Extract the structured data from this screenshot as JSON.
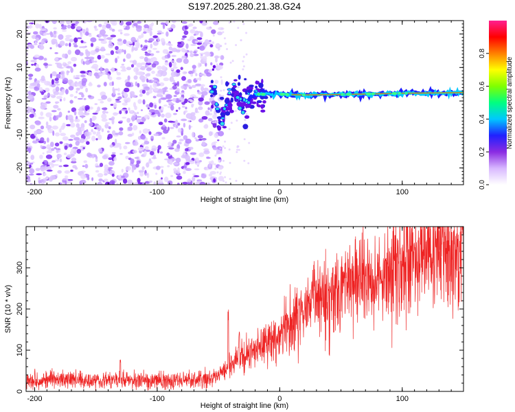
{
  "title": "S197.2025.280.21.38.G24",
  "chart_data": [
    {
      "type": "heatmap",
      "title": "S197.2025.280.21.38.G24",
      "xlabel": "Height of straight line (km)",
      "ylabel": "Frequency (Hz)",
      "xlim": [
        -207,
        150
      ],
      "ylim": [
        -25,
        24
      ],
      "xticks": [
        -200,
        -100,
        0,
        100
      ],
      "xtick_labels": [
        "-200",
        "-100",
        "0",
        "100"
      ],
      "yticks": [
        -20,
        -10,
        0,
        10,
        20
      ],
      "ytick_labels": [
        "-20",
        "-10",
        "0",
        "10",
        "20"
      ],
      "noise_region_x": [
        -207,
        -55
      ],
      "signal_track": [
        {
          "x": -55,
          "y": 8.5
        },
        {
          "x": -50,
          "y": -6
        },
        {
          "x": -45,
          "y": -3
        },
        {
          "x": -42,
          "y": 1
        },
        {
          "x": -38,
          "y": 3
        },
        {
          "x": -30,
          "y": -1
        },
        {
          "x": -20,
          "y": 2
        },
        {
          "x": 0,
          "y": 2
        },
        {
          "x": 20,
          "y": 1.8
        },
        {
          "x": 60,
          "y": 2
        },
        {
          "x": 100,
          "y": 2.3
        },
        {
          "x": 150,
          "y": 2.5
        }
      ],
      "colorbar": {
        "label": "Normalized spectral amplitude",
        "range": [
          0.0,
          1.0
        ],
        "ticks": [
          0.0,
          0.2,
          0.4,
          0.6,
          0.8
        ],
        "tick_labels": [
          "0.0",
          "0.2",
          "0.4",
          "0.6",
          "0.8"
        ],
        "colors": [
          "#ffffff",
          "#d8b8ff",
          "#8a2be2",
          "#2020ff",
          "#00c8ff",
          "#00ff80",
          "#80ff00",
          "#ffff00",
          "#ff8000",
          "#ff0000",
          "#ff2090"
        ]
      }
    },
    {
      "type": "line",
      "xlabel": "Height of straight line (km)",
      "ylabel": "SNR (10 * v/v)",
      "xlim": [
        -207,
        150
      ],
      "ylim": [
        0,
        400
      ],
      "xticks": [
        -200,
        -100,
        0,
        100
      ],
      "xtick_labels": [
        "-200",
        "-100",
        "0",
        "100"
      ],
      "yticks": [
        0,
        100,
        200,
        300
      ],
      "ytick_labels": [
        "0",
        "100",
        "200",
        "300"
      ],
      "series": [
        {
          "name": "SNR",
          "color": "#ee2222",
          "trend": [
            {
              "x": -207,
              "y": 28
            },
            {
              "x": -150,
              "y": 28
            },
            {
              "x": -100,
              "y": 26
            },
            {
              "x": -60,
              "y": 28
            },
            {
              "x": -48,
              "y": 40
            },
            {
              "x": -40,
              "y": 70
            },
            {
              "x": -30,
              "y": 85
            },
            {
              "x": -20,
              "y": 100
            },
            {
              "x": -10,
              "y": 115
            },
            {
              "x": 0,
              "y": 135
            },
            {
              "x": 10,
              "y": 165
            },
            {
              "x": 20,
              "y": 200
            },
            {
              "x": 30,
              "y": 230
            },
            {
              "x": 50,
              "y": 255
            },
            {
              "x": 70,
              "y": 275
            },
            {
              "x": 90,
              "y": 295
            },
            {
              "x": 110,
              "y": 320
            },
            {
              "x": 130,
              "y": 335
            },
            {
              "x": 150,
              "y": 345
            }
          ],
          "spikes": [
            {
              "x": -42,
              "y": 200
            },
            {
              "x": -33,
              "y": 150
            },
            {
              "x": -130,
              "y": 80
            },
            {
              "x": 110,
              "y": 390
            }
          ]
        }
      ]
    }
  ]
}
